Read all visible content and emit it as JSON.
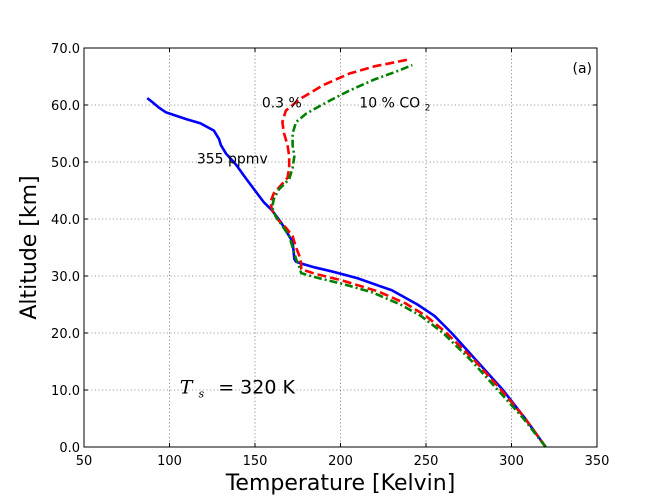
{
  "chart_data": {
    "type": "line",
    "title": "",
    "xlabel": "Temperature [Kelvin]",
    "ylabel": "Altitude [km]",
    "xlim": [
      50,
      350
    ],
    "ylim": [
      0,
      70
    ],
    "x_ticks": [
      50,
      100,
      150,
      200,
      250,
      300,
      350
    ],
    "y_ticks": [
      0,
      10,
      20,
      30,
      40,
      50,
      60,
      70
    ],
    "y_tick_labels": [
      "0.0",
      "10.0",
      "20.0",
      "30.0",
      "40.0",
      "50.0",
      "60.0",
      "70.0"
    ],
    "grid": true,
    "panel_label": "(a)",
    "surface_temp_symbol": "T",
    "surface_temp_subscript": "s",
    "surface_temp_text": "= 320 K",
    "series": [
      {
        "name": "355 ppmv",
        "color": "#0000ff",
        "style": "solid",
        "points": [
          [
            320,
            0
          ],
          [
            308,
            5
          ],
          [
            295,
            10
          ],
          [
            280,
            15
          ],
          [
            265,
            20
          ],
          [
            255,
            23
          ],
          [
            245,
            25
          ],
          [
            230,
            27.5
          ],
          [
            210,
            29.6
          ],
          [
            195,
            30.8
          ],
          [
            185,
            31.5
          ],
          [
            177,
            32.2
          ],
          [
            174,
            32.5
          ],
          [
            173,
            33
          ],
          [
            172.5,
            34.5
          ],
          [
            172,
            36
          ],
          [
            168,
            38
          ],
          [
            165,
            39.5
          ],
          [
            160,
            41.5
          ],
          [
            155,
            43
          ],
          [
            150,
            45
          ],
          [
            145,
            47
          ],
          [
            139,
            49.5
          ],
          [
            133,
            51.5
          ],
          [
            130,
            53
          ],
          [
            129,
            54
          ],
          [
            126,
            55.5
          ],
          [
            118,
            56.8
          ],
          [
            110,
            57.5
          ],
          [
            103,
            58.2
          ],
          [
            98,
            58.7
          ],
          [
            94,
            59.5
          ],
          [
            90,
            60.5
          ],
          [
            87,
            61.2
          ]
        ]
      },
      {
        "name": "0.3 %",
        "color": "#ff0000",
        "style": "dashed",
        "points": [
          [
            320,
            0
          ],
          [
            308,
            5
          ],
          [
            294,
            10
          ],
          [
            279,
            15
          ],
          [
            262,
            20
          ],
          [
            250,
            23
          ],
          [
            238,
            25.2
          ],
          [
            222,
            27.3
          ],
          [
            200,
            29.3
          ],
          [
            185,
            30.4
          ],
          [
            177,
            31.2
          ],
          [
            177,
            32.2
          ],
          [
            176,
            33.5
          ],
          [
            174,
            35
          ],
          [
            172,
            37
          ],
          [
            168,
            38.5
          ],
          [
            163,
            40
          ],
          [
            160,
            41.5
          ],
          [
            159,
            43
          ],
          [
            161,
            44.5
          ],
          [
            166,
            46.2
          ],
          [
            169,
            47.2
          ],
          [
            170,
            49
          ],
          [
            170,
            51
          ],
          [
            169,
            53
          ],
          [
            167,
            55
          ],
          [
            166,
            57
          ],
          [
            168,
            59
          ],
          [
            176,
            61
          ],
          [
            190,
            63.5
          ],
          [
            205,
            65.5
          ],
          [
            220,
            66.8
          ],
          [
            232,
            67.5
          ],
          [
            240,
            68
          ]
        ]
      },
      {
        "name": "10 % CO2",
        "color": "#008000",
        "style": "dashdot",
        "points": [
          [
            320,
            0
          ],
          [
            307,
            5
          ],
          [
            292,
            10
          ],
          [
            277,
            15
          ],
          [
            260,
            20
          ],
          [
            247,
            23
          ],
          [
            235,
            25
          ],
          [
            218,
            27.2
          ],
          [
            200,
            28.7
          ],
          [
            185,
            29.8
          ],
          [
            177,
            30.5
          ],
          [
            176,
            31.5
          ],
          [
            174,
            33
          ],
          [
            172,
            35
          ],
          [
            170,
            37
          ],
          [
            166,
            38.8
          ],
          [
            162,
            40.5
          ],
          [
            160,
            42
          ],
          [
            161,
            43.5
          ],
          [
            164,
            45.2
          ],
          [
            170,
            47
          ],
          [
            172,
            49
          ],
          [
            173,
            51
          ],
          [
            172,
            53
          ],
          [
            172,
            55
          ],
          [
            174,
            57
          ],
          [
            180,
            58.5
          ],
          [
            192,
            60.5
          ],
          [
            205,
            62.5
          ],
          [
            220,
            64.5
          ],
          [
            232,
            65.8
          ],
          [
            242,
            67
          ]
        ]
      }
    ],
    "annotations": [
      {
        "text": "355 ppmv",
        "x": 116,
        "y": 50.6
      },
      {
        "text": "0.3 %",
        "x": 154,
        "y": 60.4
      },
      {
        "text_main": "10 % CO",
        "text_sub": "2",
        "x": 211,
        "y": 60.4
      }
    ]
  }
}
